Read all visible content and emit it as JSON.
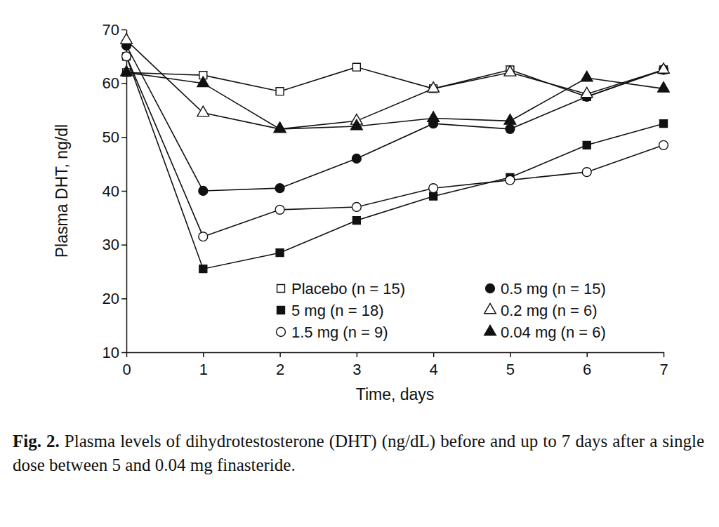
{
  "chart_data": {
    "type": "line",
    "figure_label": "Fig. 2.",
    "caption": "Plasma levels of dihydrotestosterone (DHT) (ng/dL) before and up to 7 days after a single dose between 5 and 0.04 mg finasteride.",
    "x_label": "Time, days",
    "y_label": "Plasma DHT, ng/dl",
    "x": [
      0,
      1,
      2,
      3,
      4,
      5,
      6,
      7
    ],
    "xlim": [
      0,
      7
    ],
    "xticks": [
      0,
      1,
      2,
      3,
      4,
      5,
      6,
      7
    ],
    "ylim": [
      10,
      70
    ],
    "yticks": [
      10,
      20,
      30,
      40,
      50,
      60,
      70
    ],
    "grid": false,
    "legend": "bottom",
    "series": [
      {
        "name": "Placebo (n = 15)",
        "color": "#111111",
        "marker": "square-open",
        "values": [
          62,
          61.5,
          58.5,
          63,
          59,
          62.5,
          57.5,
          62.5
        ]
      },
      {
        "name": "0.5 mg (n = 15)",
        "color": "#111111",
        "marker": "circle",
        "values": [
          67,
          40,
          40.5,
          46,
          52.5,
          51.5,
          57.5,
          62.5
        ]
      },
      {
        "name": "5 mg (n = 18)",
        "color": "#111111",
        "marker": "square",
        "values": [
          65,
          25.5,
          28.5,
          34.5,
          39,
          42.5,
          48.5,
          52.5
        ]
      },
      {
        "name": "0.2 mg (n = 6)",
        "color": "#111111",
        "marker": "triangle-open",
        "values": [
          68,
          54.5,
          51.5,
          53,
          59,
          62,
          58,
          62.5
        ]
      },
      {
        "name": "1.5 mg (n = 9)",
        "color": "#111111",
        "marker": "circle-open",
        "values": [
          65,
          31.5,
          36.5,
          37,
          40.5,
          42,
          43.5,
          48.5
        ]
      },
      {
        "name": "0.04 mg (n = 6)",
        "color": "#111111",
        "marker": "triangle",
        "values": [
          62,
          60,
          51.5,
          52,
          53.5,
          53,
          61,
          59
        ]
      }
    ]
  }
}
